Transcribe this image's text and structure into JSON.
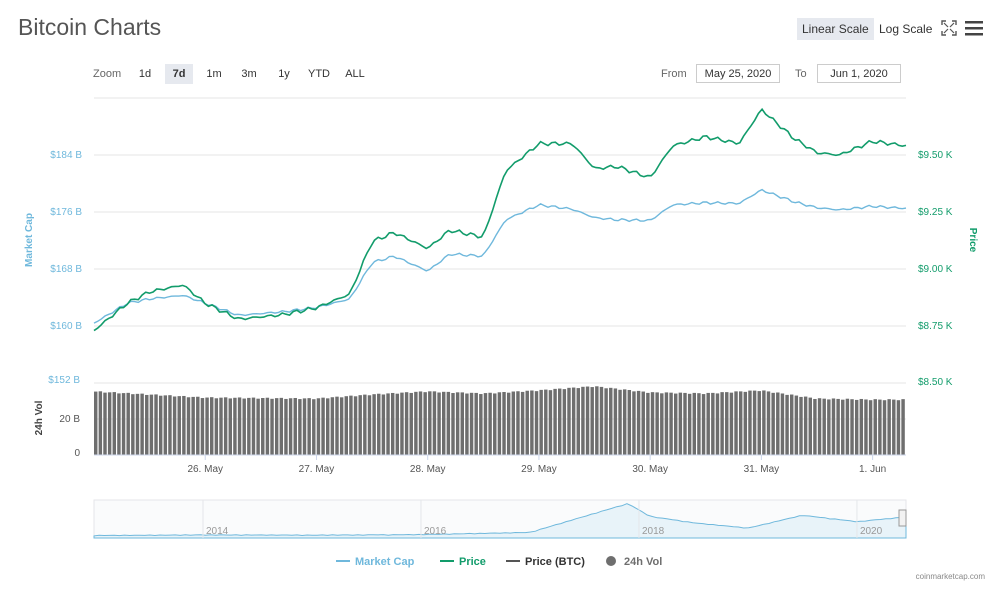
{
  "header": {
    "title": "Bitcoin Charts",
    "linear_scale": "Linear Scale",
    "log_scale": "Log Scale"
  },
  "toolbar": {
    "zoom_label": "Zoom",
    "zoom_options": [
      "1d",
      "7d",
      "1m",
      "3m",
      "1y",
      "YTD",
      "ALL"
    ],
    "active_zoom": "7d",
    "from_label": "From",
    "from_date": "May 25, 2020",
    "to_label": "To",
    "to_date": "Jun 1, 2020"
  },
  "colors": {
    "market_cap": "#6fb8dc",
    "price": "#129c6b",
    "price_btc": "#555555",
    "volume": "#6e6e6e",
    "grid": "#e6e6e6"
  },
  "chart_data": [
    {
      "type": "line",
      "x_ticks": [
        "26. May",
        "27. May",
        "28. May",
        "29. May",
        "30. May",
        "31. May",
        "1. Jun"
      ],
      "left_axis": {
        "label": "Market Cap",
        "ticks": [
          "$160 B",
          "$168 B",
          "$176 B",
          "$184 B"
        ],
        "ylim": [
          160,
          184
        ]
      },
      "right_axis": {
        "label": "Price",
        "ticks": [
          "$8.75 K",
          "$9.00 K",
          "$9.25 K",
          "$9.50 K",
          "$8.50 K"
        ],
        "ylim": [
          8.5,
          9.5
        ]
      },
      "series": [
        {
          "name": "Market Cap",
          "unit": "B USD",
          "points": [
            [
              25.0,
              160.4
            ],
            [
              25.3,
              163.2
            ],
            [
              25.5,
              163.8
            ],
            [
              25.8,
              164.3
            ],
            [
              26.0,
              163.2
            ],
            [
              26.3,
              161.5
            ],
            [
              26.7,
              162.0
            ],
            [
              27.0,
              162.6
            ],
            [
              27.3,
              163.8
            ],
            [
              27.5,
              168.9
            ],
            [
              27.7,
              169.8
            ],
            [
              28.0,
              167.7
            ],
            [
              28.2,
              170.1
            ],
            [
              28.5,
              169.8
            ],
            [
              28.7,
              174.9
            ],
            [
              29.0,
              177.0
            ],
            [
              29.3,
              176.4
            ],
            [
              29.5,
              175.2
            ],
            [
              29.7,
              174.9
            ],
            [
              30.0,
              174.8
            ],
            [
              30.2,
              177.0
            ],
            [
              30.5,
              177.3
            ],
            [
              30.8,
              177.2
            ],
            [
              31.0,
              179.1
            ],
            [
              31.3,
              177.4
            ],
            [
              31.5,
              176.6
            ],
            [
              31.7,
              176.3
            ],
            [
              32.0,
              176.8
            ],
            [
              32.3,
              176.5
            ]
          ]
        },
        {
          "name": "Price",
          "unit": "K USD",
          "points": [
            [
              25.0,
              8.73
            ],
            [
              25.3,
              8.85
            ],
            [
              25.5,
              8.9
            ],
            [
              25.8,
              8.93
            ],
            [
              26.0,
              8.85
            ],
            [
              26.3,
              8.78
            ],
            [
              26.7,
              8.8
            ],
            [
              27.0,
              8.83
            ],
            [
              27.3,
              8.89
            ],
            [
              27.5,
              9.12
            ],
            [
              27.7,
              9.16
            ],
            [
              28.0,
              9.09
            ],
            [
              28.2,
              9.17
            ],
            [
              28.5,
              9.14
            ],
            [
              28.7,
              9.43
            ],
            [
              29.0,
              9.55
            ],
            [
              29.3,
              9.55
            ],
            [
              29.5,
              9.44
            ],
            [
              29.7,
              9.45
            ],
            [
              30.0,
              9.4
            ],
            [
              30.2,
              9.54
            ],
            [
              30.5,
              9.58
            ],
            [
              30.8,
              9.55
            ],
            [
              31.0,
              9.7
            ],
            [
              31.3,
              9.57
            ],
            [
              31.5,
              9.51
            ],
            [
              31.7,
              9.5
            ],
            [
              32.0,
              9.56
            ],
            [
              32.3,
              9.54
            ]
          ]
        }
      ],
      "legend": [
        "Market Cap",
        "Price",
        "Price (BTC)",
        "24h Vol"
      ],
      "legend_position": "bottom",
      "grid": true
    },
    {
      "type": "bar",
      "axis": {
        "label": "24h Vol",
        "ticks": [
          "$152 B",
          "20 B",
          "0"
        ]
      },
      "series": [
        {
          "name": "24h Vol",
          "unit": "B USD",
          "points": [
            [
              25.0,
              31.0
            ],
            [
              26.0,
              28.0
            ],
            [
              27.0,
              27.5
            ],
            [
              27.5,
              29.5
            ],
            [
              28.0,
              31.0
            ],
            [
              28.5,
              30.0
            ],
            [
              29.0,
              31.5
            ],
            [
              29.5,
              33.5
            ],
            [
              30.0,
              30.5
            ],
            [
              30.5,
              30.0
            ],
            [
              31.0,
              31.5
            ],
            [
              31.5,
              27.5
            ],
            [
              32.0,
              27.0
            ],
            [
              32.3,
              27.0
            ]
          ]
        }
      ]
    },
    {
      "type": "area",
      "role": "navigator",
      "x_ticks": [
        "2014",
        "2016",
        "2018",
        "2020"
      ],
      "series": [
        {
          "name": "Market Cap",
          "points": [
            [
              2013.0,
              1
            ],
            [
              2014.0,
              6
            ],
            [
              2015.0,
              4
            ],
            [
              2016.0,
              9
            ],
            [
              2017.0,
              30
            ],
            [
              2017.9,
              300
            ],
            [
              2018.1,
              180
            ],
            [
              2018.5,
              120
            ],
            [
              2019.0,
              70
            ],
            [
              2019.5,
              190
            ],
            [
              2020.0,
              130
            ],
            [
              2020.4,
              170
            ]
          ]
        }
      ]
    }
  ],
  "footer": {
    "credit": "coinmarketcap.com"
  }
}
